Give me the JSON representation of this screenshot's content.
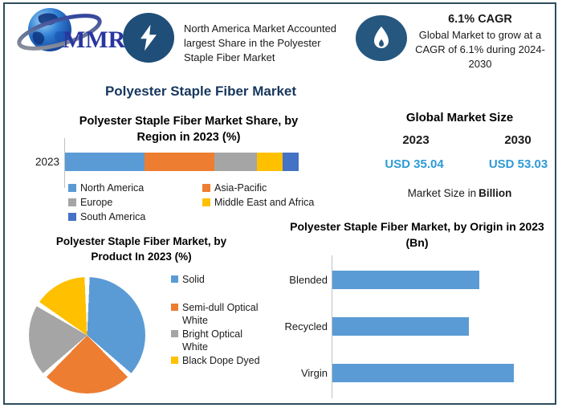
{
  "colors": {
    "frame_border": "#2e4d5c",
    "navy_title": "#17365d",
    "badge_blue": "#1f4e79",
    "value_blue": "#2e9ad6",
    "axis_gray": "#c0c0c0"
  },
  "logo": {
    "text": "MMR"
  },
  "header": {
    "headline": "North America Market Accounted largest Share in the Polyester Staple Fiber Market",
    "cagr_title": "6.1% CAGR",
    "cagr_body": "Global Market to grow at a CAGR of 6.1% during 2024-2030"
  },
  "main_title": "Polyester Staple Fiber Market",
  "market_size": {
    "title": "Global Market Size",
    "year_left": "2023",
    "year_right": "2030",
    "value_left": "USD 35.04",
    "value_right": "USD 53.03",
    "footnote_prefix": "Market Size in",
    "footnote_bold": "Billion"
  },
  "chart_data": [
    {
      "type": "bar",
      "subtype": "stacked-horizontal",
      "title": "Polyester Staple Fiber Market Share, by Region in 2023 (%)",
      "categories": [
        "2023"
      ],
      "series": [
        {
          "name": "North America",
          "value": 34,
          "color": "#5b9bd5"
        },
        {
          "name": "Asia-Pacific",
          "value": 30,
          "color": "#ed7d31"
        },
        {
          "name": "Europe",
          "value": 18,
          "color": "#a5a5a5"
        },
        {
          "name": "Middle East and Africa",
          "value": 11,
          "color": "#ffc000"
        },
        {
          "name": "South America",
          "value": 7,
          "color": "#4472c4"
        }
      ],
      "xlim": [
        0,
        100
      ],
      "legend_position": "bottom",
      "grid": false
    },
    {
      "type": "pie",
      "title": "Polyester Staple Fiber Market, by Product In 2023 (%)",
      "slices": [
        {
          "label": "Solid",
          "value": 37,
          "color": "#5b9bd5"
        },
        {
          "label": "Semi-dull Optical White",
          "value": 26,
          "color": "#ed7d31"
        },
        {
          "label": "Bright Optical White",
          "value": 21,
          "color": "#a5a5a5"
        },
        {
          "label": "Black Dope Dyed",
          "value": 16,
          "color": "#ffc000"
        }
      ],
      "start_angle_deg": 0,
      "direction": "clockwise",
      "legend_position": "right"
    },
    {
      "type": "bar",
      "subtype": "horizontal",
      "title": "Polyester Staple Fiber Market, by Origin in 2023 (Bn)",
      "categories": [
        "Blended",
        "Recycled",
        "Virgin"
      ],
      "values": [
        0.81,
        0.75,
        1.0
      ],
      "values_are": "relative-to-longest-bar",
      "bar_color": "#5b9bd5",
      "xlim": [
        0,
        1.1
      ],
      "grid": false
    }
  ]
}
